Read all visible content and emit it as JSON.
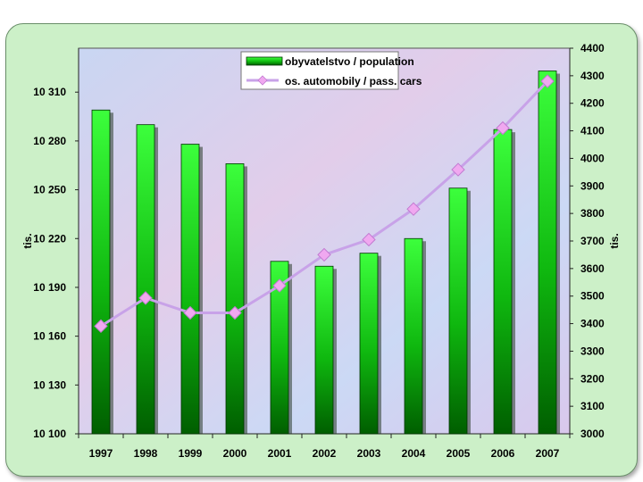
{
  "chart_data": {
    "type": "bar",
    "categories": [
      "1997",
      "1998",
      "1999",
      "2000",
      "2001",
      "2002",
      "2003",
      "2004",
      "2005",
      "2006",
      "2007"
    ],
    "series": [
      {
        "name": "obyvatelstvo / population",
        "type": "bar",
        "axis": "left",
        "values": [
          10299,
          10290,
          10278,
          10266,
          10206,
          10203,
          10211,
          10220,
          10251,
          10287,
          10323
        ]
      },
      {
        "name": "os. automobily / pass. cars",
        "type": "line",
        "axis": "right",
        "values": [
          3391,
          3493,
          3439,
          3439,
          3538,
          3650,
          3705,
          3816,
          3959,
          4110,
          4280
        ]
      }
    ],
    "left_axis": {
      "label": "tis.",
      "ylim": [
        10100,
        10337
      ],
      "ticks": [
        10100,
        10130,
        10160,
        10190,
        10220,
        10250,
        10280,
        10310
      ],
      "tick_labels": [
        "10 100",
        "10 130",
        "10 160",
        "10 190",
        "10 220",
        "10 250",
        "10 280",
        "10 310"
      ]
    },
    "right_axis": {
      "label": "tis.",
      "ylim": [
        3000,
        4400
      ],
      "ticks": [
        3000,
        3100,
        3200,
        3300,
        3400,
        3500,
        3600,
        3700,
        3800,
        3900,
        4000,
        4100,
        4200,
        4300,
        4400
      ],
      "tick_labels": [
        "3000",
        "3100",
        "3200",
        "3300",
        "3400",
        "3500",
        "3600",
        "3700",
        "3800",
        "3900",
        "4000",
        "4100",
        "4200",
        "4300",
        "4400"
      ]
    },
    "legend_position": "top-center",
    "grid": false
  },
  "colors": {
    "bar_light": "#3cff3c",
    "bar_dark": "#006a00",
    "line": "#c8a2e8",
    "marker": "#f0a8f0",
    "plot_bg": "#cfd9f3",
    "frame_bg": "#ccf0c8"
  }
}
